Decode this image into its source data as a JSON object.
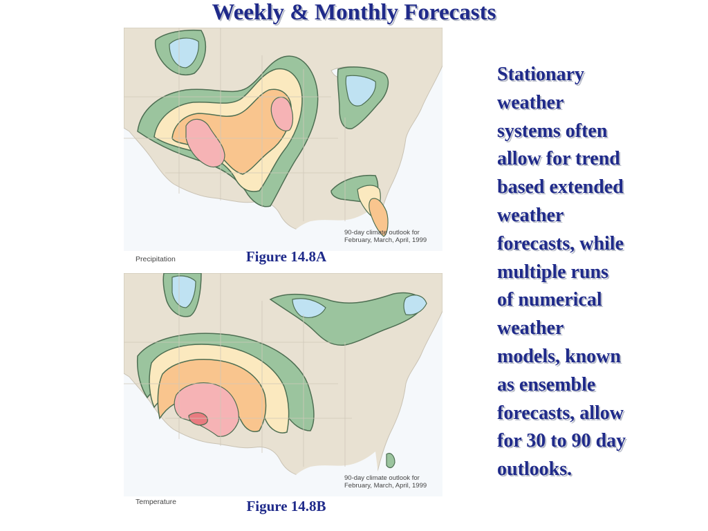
{
  "slide": {
    "title": "Weekly & Monthly Forecasts",
    "body_text": "Stationary\nweather\nsystems often\nallow for trend\nbased extended\nweather\nforecasts, while\nmultiple runs\nof numerical\nweather\nmodels, known\nas ensemble\nforecasts, allow\nfor 30 to 90 day\noutlooks."
  },
  "figures": [
    {
      "figure_label": "Figure 14.8A",
      "map_label": "Precipitation",
      "caption": "90-day climate outlook for\nFebruary, March, April, 1999"
    },
    {
      "figure_label": "Figure 14.8B",
      "map_label": "Temperature",
      "caption": "90-day climate outlook for\nFebruary, March, April, 1999"
    }
  ],
  "colors": {
    "title_text": "#1f2a8a",
    "land": "#e8e1d2",
    "ocean": "#f5f8fb",
    "green_zone": "#9bc49e",
    "blue_zone": "#bfe2f2",
    "light_yellow_zone": "#fbe9bf",
    "orange_zone": "#f9c58e",
    "pink_zone": "#f6b3b5",
    "red_zone": "#e97b80"
  }
}
